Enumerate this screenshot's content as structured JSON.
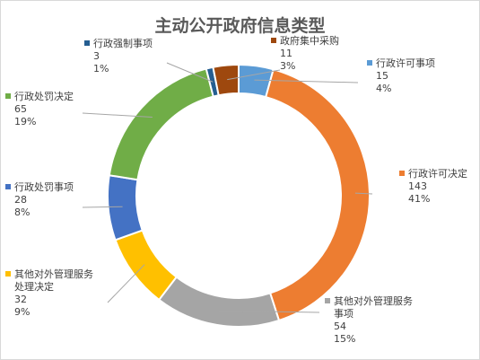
{
  "chart_data": {
    "type": "donut",
    "title": "主动公开政府信息类型",
    "legend": "none",
    "series": [
      {
        "name": "行政许可事项",
        "value": 15,
        "percent": "4%",
        "color": "#5B9BD5"
      },
      {
        "name": "行政许可决定",
        "value": 143,
        "percent": "41%",
        "color": "#ED7D31"
      },
      {
        "name": "其他对外管理服务事项",
        "value": 54,
        "percent": "15%",
        "color": "#A5A5A5"
      },
      {
        "name": "其他对外管理服务处理决定",
        "value": 32,
        "percent": "9%",
        "color": "#FFC000"
      },
      {
        "name": "行政处罚事项",
        "value": 28,
        "percent": "8%",
        "color": "#4472C4"
      },
      {
        "name": "行政处罚决定",
        "value": 65,
        "percent": "19%",
        "color": "#70AD47"
      },
      {
        "name": "行政强制事项",
        "value": 3,
        "percent": "1%",
        "color": "#255E91"
      },
      {
        "name": "政府集中采购",
        "value": 11,
        "percent": "3%",
        "color": "#9E480E"
      }
    ]
  }
}
